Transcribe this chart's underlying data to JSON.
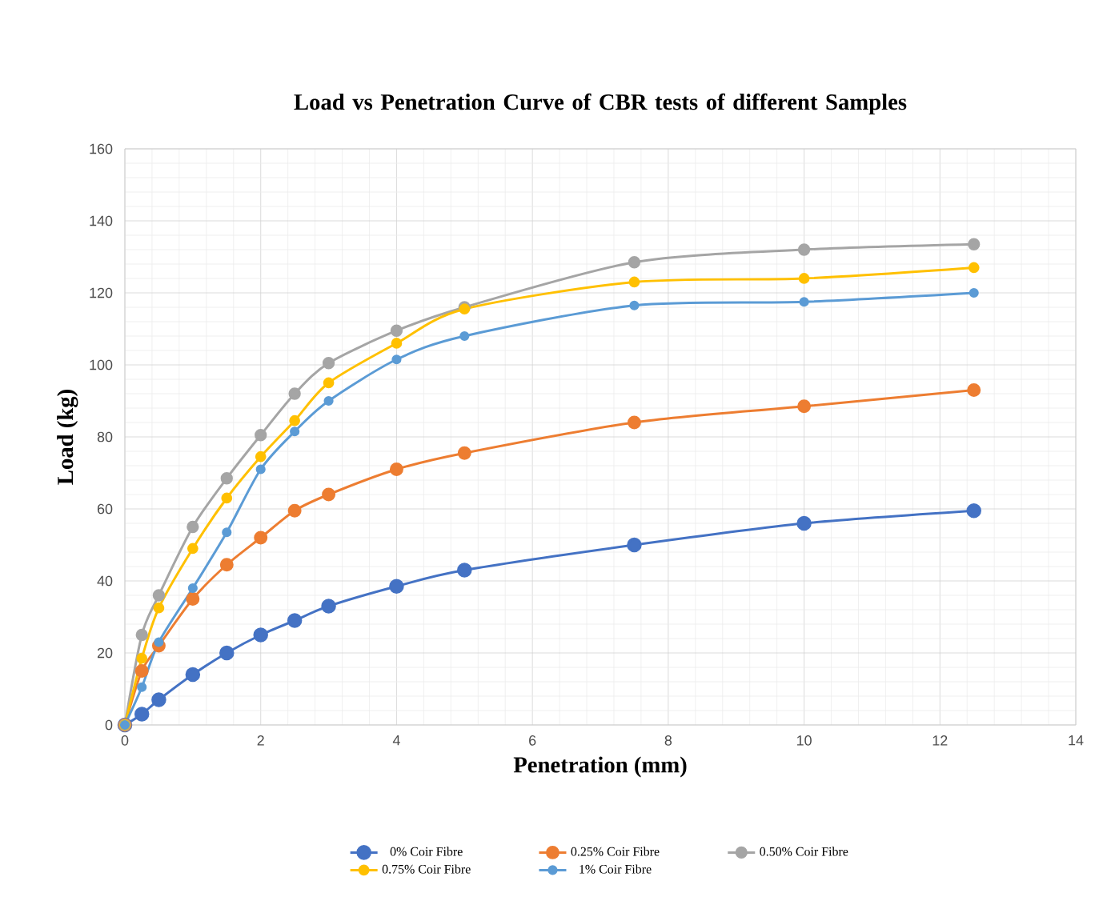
{
  "chart_data": {
    "type": "line",
    "title": "Load vs Penetration Curve of CBR tests of different Samples",
    "xlabel": "Penetration (mm)",
    "ylabel": "Load (kg)",
    "x": [
      0,
      0.25,
      0.5,
      1,
      1.5,
      2,
      2.5,
      3,
      4,
      5,
      7.5,
      10,
      12.5
    ],
    "series": [
      {
        "name": "0% Coir Fibre",
        "color": "#4472c4",
        "values": [
          0,
          3,
          7,
          14,
          20,
          25,
          29,
          33,
          38.5,
          43,
          50,
          56,
          59.5
        ]
      },
      {
        "name": "0.25% Coir Fibre",
        "color": "#ed7d31",
        "values": [
          0,
          15,
          22,
          35,
          44.5,
          52,
          59.5,
          64,
          71,
          75.5,
          84,
          88.5,
          93
        ]
      },
      {
        "name": "0.50% Coir Fibre",
        "color": "#a5a5a5",
        "values": [
          0,
          25,
          36,
          55,
          68.5,
          80.5,
          92,
          100.5,
          109.5,
          116,
          128.5,
          132,
          133.5
        ]
      },
      {
        "name": "0.75% Coir Fibre",
        "color": "#ffc000",
        "values": [
          0,
          18.5,
          32.5,
          49,
          63,
          74.5,
          84.5,
          95,
          106,
          115.5,
          123,
          124,
          127
        ]
      },
      {
        "name": "1% Coir Fibre",
        "color": "#5b9bd5",
        "values": [
          0,
          10.5,
          23,
          38,
          53.5,
          71,
          81.5,
          90,
          101.5,
          108,
          116.5,
          117.5,
          120
        ]
      }
    ],
    "xlim": [
      0,
      14
    ],
    "xticks": [
      0,
      2,
      4,
      6,
      8,
      10,
      12,
      14
    ],
    "ylim": [
      0,
      160
    ],
    "yticks": [
      0,
      20,
      40,
      60,
      80,
      100,
      120,
      140,
      160
    ],
    "grid": true,
    "legend": "bottom",
    "marker": "circle",
    "line_style": "solid"
  }
}
